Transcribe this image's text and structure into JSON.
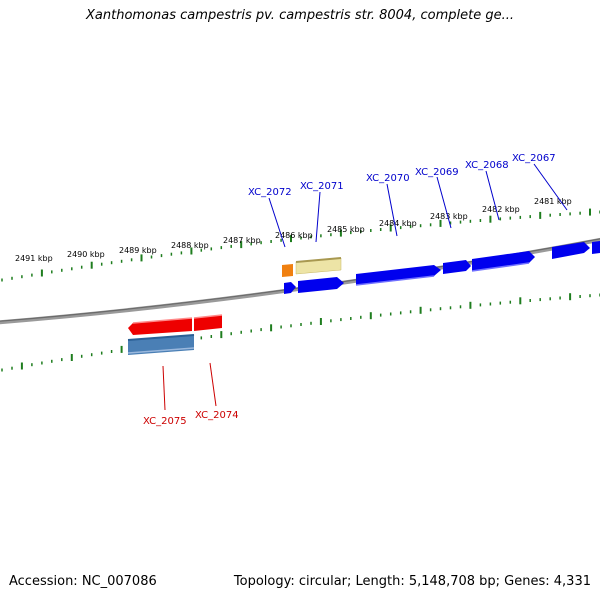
{
  "title": "Xanthomonas campestris pv. campestris str. 8004, complete ge...",
  "footer": {
    "accession": "Accession: NC_007086",
    "summary": "Topology: circular; Length: 5,148,708 bp; Genes: 4,331"
  },
  "colors": {
    "forward_gene": "#0000ee",
    "reverse_gene": "#ee0000",
    "forward_label": "#0000cc",
    "reverse_label": "#cc0000",
    "tick": "#1e7d1e",
    "backbone": "#808080",
    "rna_gene": "#f08010",
    "misc_feature": "#ede4a6",
    "reverse_misc": "#4a7fb5"
  },
  "kbp_ticks": [
    "2491 kbp",
    "2490 kbp",
    "2489 kbp",
    "2488 kbp",
    "2487 kbp",
    "2486 kbp",
    "2485 kbp",
    "2484 kbp",
    "2483 kbp",
    "2482 kbp",
    "2481 kbp"
  ],
  "gene_labels": {
    "forward": [
      "XC_2072",
      "XC_2071",
      "XC_2070",
      "XC_2069",
      "XC_2068",
      "XC_2067"
    ],
    "reverse": [
      "XC_2075",
      "XC_2074"
    ]
  },
  "icons": {
    "forward_arrow": "right-arrow-icon",
    "reverse_arrow": "left-arrow-icon"
  }
}
